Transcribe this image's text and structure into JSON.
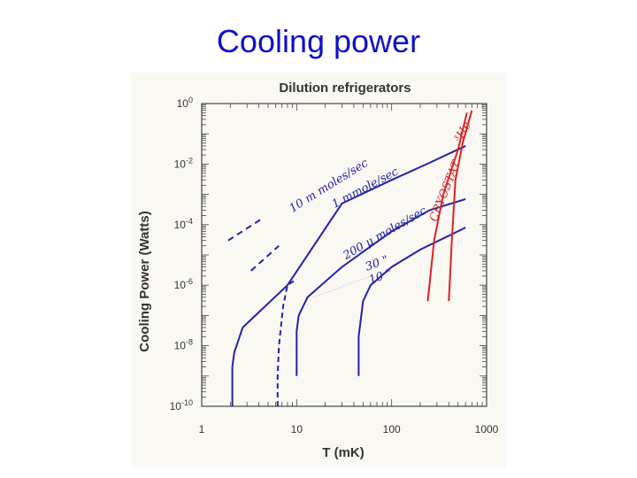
{
  "slide": {
    "title": "Cooling power"
  },
  "chart_data": {
    "type": "line",
    "title": "Dilution refrigerators",
    "xlabel": "T  (mK)",
    "ylabel": "Cooling  Power  (Watts)",
    "xscale": "log",
    "yscale": "log",
    "xlim": [
      1,
      1000
    ],
    "ylim": [
      1e-10,
      1
    ],
    "x_ticks": [
      {
        "value": 1,
        "label": "1"
      },
      {
        "value": 10,
        "label": "10"
      },
      {
        "value": 100,
        "label": "100"
      },
      {
        "value": 1000,
        "label": "1000"
      }
    ],
    "y_ticks": [
      {
        "value": 1,
        "base": "10",
        "exp": "0"
      },
      {
        "value": 0.01,
        "base": "10",
        "exp": "-2"
      },
      {
        "value": 0.0001,
        "base": "10",
        "exp": "-4"
      },
      {
        "value": 1e-06,
        "base": "10",
        "exp": "-6"
      },
      {
        "value": 1e-08,
        "base": "10",
        "exp": "-8"
      },
      {
        "value": 1e-10,
        "base": "10",
        "exp": "-10"
      }
    ],
    "colors": {
      "dilution": "#2222aa",
      "cryostat": "#dd2222"
    },
    "series": [
      {
        "label": "10 m moles/sec",
        "color": "#2222aa",
        "dashed_segment": [
          [
            1.9,
            3e-05
          ],
          [
            4.2,
            0.00015
          ]
        ],
        "points": [
          [
            2.1,
            1e-10
          ],
          [
            2.1,
            2e-09
          ],
          [
            2.2,
            6e-09
          ],
          [
            2.7,
            4e-08
          ],
          [
            4.2,
            0.00015
          ],
          [
            8,
            1e-06
          ],
          [
            30,
            0.0005
          ],
          [
            100,
            0.003
          ],
          [
            250,
            0.011
          ],
          [
            600,
            0.04
          ]
        ]
      },
      {
        "label": "1 mmole/sec",
        "color": "#2222aa",
        "dashed": true,
        "points": [
          [
            6.3,
            1e-10
          ],
          [
            6.3,
            1e-09
          ],
          [
            6.5,
            1e-08
          ],
          [
            7.2,
            2e-07
          ],
          [
            8,
            1e-06
          ],
          [
            10,
            1.6e-06
          ]
        ]
      },
      {
        "label": "200 μ moles/sec",
        "color": "#2222aa",
        "points": [
          [
            10,
            1e-09
          ],
          [
            10,
            3e-08
          ],
          [
            10.5,
            1e-07
          ],
          [
            13,
            4e-07
          ],
          [
            30,
            4e-06
          ],
          [
            100,
            6e-05
          ],
          [
            250,
            0.0003
          ],
          [
            600,
            0.0007
          ]
        ]
      },
      {
        "label": "30 \"",
        "color": "#2222aa",
        "points": [
          [
            45,
            1e-09
          ],
          [
            45,
            2e-08
          ],
          [
            50,
            3e-07
          ],
          [
            60,
            1e-06
          ],
          [
            100,
            4e-06
          ],
          [
            200,
            1.5e-05
          ],
          [
            600,
            8e-05
          ]
        ]
      },
      {
        "label": "10 \"",
        "color": "#2222aa",
        "points": []
      }
    ],
    "cryostat_curves": [
      {
        "label": "CRYOSTAT",
        "color": "#dd2222",
        "points": [
          [
            240,
            3e-07
          ],
          [
            280,
            3e-05
          ],
          [
            350,
            0.001
          ],
          [
            500,
            0.03
          ],
          [
            620,
            0.5
          ]
        ]
      },
      {
        "label": "³He",
        "color": "#dd2222",
        "points": [
          [
            400,
            3e-07
          ],
          [
            430,
            3e-05
          ],
          [
            470,
            0.003
          ],
          [
            560,
            0.05
          ],
          [
            700,
            0.6
          ]
        ]
      }
    ],
    "annotations": [
      "10 m moles/sec",
      "1 mmole/sec",
      "200 μ moles/sec",
      "30 \"",
      "10 \"",
      "CRYOSTAT",
      "³He"
    ]
  }
}
